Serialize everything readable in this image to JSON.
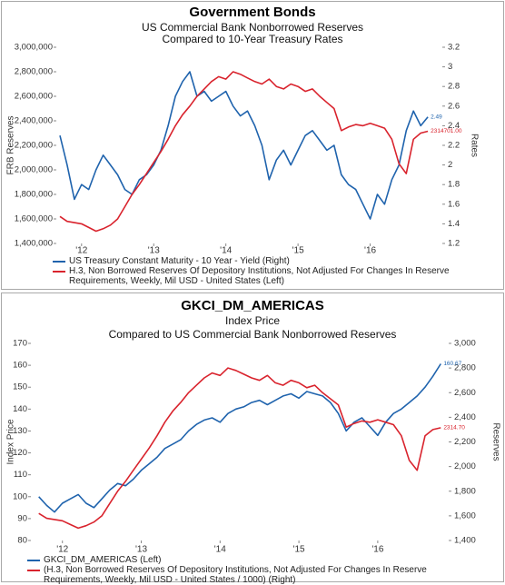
{
  "chart_data": [
    {
      "type": "line",
      "title": "Government Bonds",
      "subtitles": [
        "US Commercial Bank Nonborrowed Reserves",
        "Compared to 10-Year Treasury Rates"
      ],
      "ylabel": "FRB Reserves",
      "y2label": "Rates",
      "x": [
        2011.7,
        2011.8,
        2011.9,
        2012,
        2012.1,
        2012.2,
        2012.3,
        2012.4,
        2012.5,
        2012.6,
        2012.7,
        2012.8,
        2012.9,
        2013,
        2013.1,
        2013.2,
        2013.3,
        2013.4,
        2013.5,
        2013.6,
        2013.7,
        2013.8,
        2013.9,
        2014,
        2014.1,
        2014.2,
        2014.3,
        2014.4,
        2014.5,
        2014.6,
        2014.7,
        2014.8,
        2014.9,
        2015,
        2015.1,
        2015.2,
        2015.3,
        2015.4,
        2015.5,
        2015.6,
        2015.7,
        2015.8,
        2015.9,
        2016,
        2016.1,
        2016.2,
        2016.3,
        2016.4,
        2016.5,
        2016.6,
        2016.7,
        2016.8
      ],
      "xlim": [
        2011.65,
        2017.0
      ],
      "xticks": [
        {
          "value": 2012,
          "label": "'12"
        },
        {
          "value": 2013,
          "label": "'13"
        },
        {
          "value": 2014,
          "label": "'14"
        },
        {
          "value": 2015,
          "label": "'15"
        },
        {
          "value": 2016,
          "label": "'16"
        }
      ],
      "ylim": [
        1400000,
        3000000
      ],
      "yticks": [
        {
          "value": 1400000,
          "label": "1,400,000"
        },
        {
          "value": 1600000,
          "label": "1,600,000"
        },
        {
          "value": 1800000,
          "label": "1,800,000"
        },
        {
          "value": 2000000,
          "label": "2,000,000"
        },
        {
          "value": 2200000,
          "label": "2,200,000"
        },
        {
          "value": 2400000,
          "label": "2,400,000"
        },
        {
          "value": 2600000,
          "label": "2,600,000"
        },
        {
          "value": 2800000,
          "label": "2,800,000"
        },
        {
          "value": 3000000,
          "label": "3,000,000"
        }
      ],
      "y2lim": [
        1.2,
        3.2
      ],
      "y2ticks": [
        1.2,
        1.4,
        1.6,
        1.8,
        2,
        2.2,
        2.4,
        2.6,
        2.8,
        3,
        3.2
      ],
      "grid": false,
      "series": [
        {
          "name": "US Treasury Constant Maturity - 10 Year - Yield  (Right)",
          "color": "#1f63ad",
          "axis": "y2",
          "values": [
            2.3,
            2.0,
            1.65,
            1.8,
            1.75,
            1.95,
            2.1,
            2.0,
            1.9,
            1.75,
            1.7,
            1.85,
            1.9,
            2.0,
            2.15,
            2.4,
            2.7,
            2.85,
            2.95,
            2.7,
            2.75,
            2.65,
            2.7,
            2.75,
            2.6,
            2.5,
            2.55,
            2.4,
            2.2,
            1.85,
            2.05,
            2.15,
            2.0,
            2.15,
            2.3,
            2.35,
            2.25,
            2.15,
            2.2,
            1.9,
            1.8,
            1.75,
            1.6,
            1.45,
            1.7,
            1.6,
            1.85,
            2.0,
            2.35,
            2.55,
            2.4,
            2.49
          ]
        },
        {
          "name": "H.3, Non Borrowed Reserves Of Depository Institutions, Not Adjusted For Changes In Reserve Requirements, Weekly, Mil USD - United States  (Left)",
          "color": "#d9232d",
          "axis": "y",
          "values": [
            1620000,
            1580000,
            1570000,
            1560000,
            1530000,
            1500000,
            1520000,
            1550000,
            1600000,
            1700000,
            1800000,
            1880000,
            1970000,
            2060000,
            2150000,
            2250000,
            2360000,
            2450000,
            2520000,
            2600000,
            2660000,
            2720000,
            2760000,
            2740000,
            2800000,
            2780000,
            2750000,
            2720000,
            2700000,
            2740000,
            2680000,
            2660000,
            2700000,
            2680000,
            2640000,
            2660000,
            2600000,
            2550000,
            2500000,
            2320000,
            2350000,
            2370000,
            2360000,
            2380000,
            2360000,
            2340000,
            2250000,
            2050000,
            1970000,
            2250000,
            2300000,
            2314701
          ]
        }
      ],
      "annotations": [
        "2.49",
        "2314701.00"
      ]
    },
    {
      "type": "line",
      "title": "GKCI_DM_AMERICAS",
      "subtitles": [
        "Index Price",
        "Compared to US Commercial Bank Nonborrowed Reserves"
      ],
      "ylabel": "Index Price",
      "y2label": "Reserves",
      "x": [
        2011.7,
        2011.8,
        2011.9,
        2012,
        2012.1,
        2012.2,
        2012.3,
        2012.4,
        2012.5,
        2012.6,
        2012.7,
        2012.8,
        2012.9,
        2013,
        2013.1,
        2013.2,
        2013.3,
        2013.4,
        2013.5,
        2013.6,
        2013.7,
        2013.8,
        2013.9,
        2014,
        2014.1,
        2014.2,
        2014.3,
        2014.4,
        2014.5,
        2014.6,
        2014.7,
        2014.8,
        2014.9,
        2015,
        2015.1,
        2015.2,
        2015.3,
        2015.4,
        2015.5,
        2015.6,
        2015.7,
        2015.8,
        2015.9,
        2016,
        2016.1,
        2016.2,
        2016.3,
        2016.4,
        2016.5,
        2016.6,
        2016.7,
        2016.8
      ],
      "xlim": [
        2011.6,
        2016.9
      ],
      "xticks": [
        {
          "value": 2012,
          "label": "'12"
        },
        {
          "value": 2013,
          "label": "'13"
        },
        {
          "value": 2014,
          "label": "'14"
        },
        {
          "value": 2015,
          "label": "'15"
        },
        {
          "value": 2016,
          "label": "'16"
        }
      ],
      "ylim": [
        80,
        170
      ],
      "yticks": [
        80,
        90,
        100,
        110,
        120,
        130,
        140,
        150,
        160,
        170
      ],
      "y2lim": [
        1400,
        3000
      ],
      "y2ticks": [
        {
          "value": 1400,
          "label": "1,400"
        },
        {
          "value": 1600,
          "label": "1,600"
        },
        {
          "value": 1800,
          "label": "1,800"
        },
        {
          "value": 2000,
          "label": "2,000"
        },
        {
          "value": 2200,
          "label": "2,200"
        },
        {
          "value": 2400,
          "label": "2,400"
        },
        {
          "value": 2600,
          "label": "2,600"
        },
        {
          "value": 2800,
          "label": "2,800"
        },
        {
          "value": 3000,
          "label": "3,000"
        }
      ],
      "grid": false,
      "series": [
        {
          "name": "GKCI_DM_AMERICAS  (Left)",
          "color": "#1f63ad",
          "axis": "y",
          "values": [
            100,
            96,
            93,
            97,
            99,
            101,
            97,
            95,
            99,
            103,
            106,
            105,
            108,
            112,
            115,
            118,
            122,
            124,
            126,
            130,
            133,
            135,
            136,
            134,
            138,
            140,
            141,
            143,
            144,
            142,
            144,
            146,
            147,
            145,
            148,
            147,
            146,
            143,
            138,
            130,
            134,
            136,
            132,
            128,
            134,
            138,
            140,
            143,
            146,
            150,
            155,
            160.67
          ]
        },
        {
          "name": "(H.3, Non Borrowed Reserves Of Depository Institutions, Not Adjusted For Changes In Reserve Requirements, Weekly, Mil USD - United States / 1000)  (Right)",
          "color": "#d9232d",
          "axis": "y2",
          "values": [
            1620,
            1580,
            1570,
            1560,
            1530,
            1500,
            1520,
            1550,
            1600,
            1700,
            1800,
            1880,
            1970,
            2060,
            2150,
            2250,
            2360,
            2450,
            2520,
            2600,
            2660,
            2720,
            2760,
            2740,
            2800,
            2780,
            2750,
            2720,
            2700,
            2740,
            2680,
            2660,
            2700,
            2680,
            2640,
            2660,
            2600,
            2550,
            2500,
            2320,
            2350,
            2370,
            2360,
            2380,
            2360,
            2340,
            2250,
            2050,
            1970,
            2250,
            2300,
            2314.7
          ]
        }
      ],
      "annotations": [
        "160.67",
        "2314.70"
      ]
    }
  ]
}
